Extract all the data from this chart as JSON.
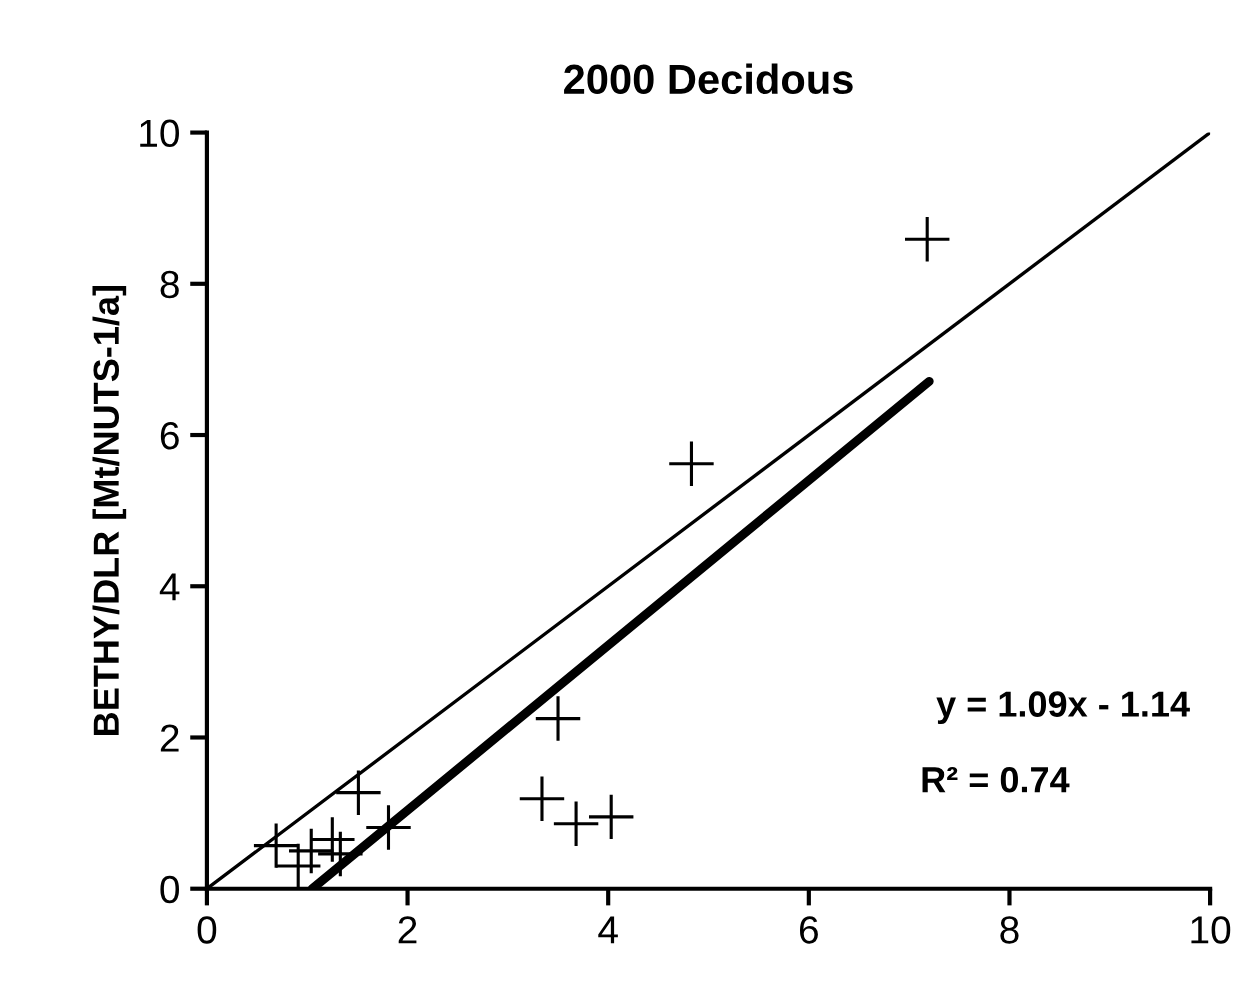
{
  "chart_data": {
    "type": "scatter",
    "title": "2000 Decidous",
    "ylabel": "BETHY/DLR [Mt/NUTS-1/a]",
    "series": [
      {
        "color": "#000000",
        "marker": "cross",
        "x": [
          0.69,
          0.91,
          1.04,
          1.25,
          1.33,
          1.51,
          1.81,
          3.34,
          3.5,
          3.68,
          4.03,
          4.83,
          7.18
        ],
        "values": [
          0.57,
          0.3,
          0.5,
          0.65,
          0.46,
          1.27,
          0.81,
          1.19,
          2.25,
          0.86,
          0.95,
          5.62,
          8.59
        ]
      },
      {
        "type": "line",
        "color": "#000000",
        "x": [
          0,
          10
        ],
        "values": [
          0,
          10
        ]
      },
      {
        "type": "line",
        "color": "#000000",
        "x": [
          1.05,
          7.2
        ],
        "values": [
          0,
          6.71
        ]
      }
    ],
    "annotations": [
      "y = 1.09x - 1.14",
      "R² = 0.74"
    ],
    "xlim": [
      0,
      10
    ],
    "ylim": [
      0,
      10
    ],
    "xticks": [
      0,
      2,
      4,
      6,
      8,
      10
    ],
    "yticks": [
      0,
      2,
      4,
      6,
      8,
      10
    ],
    "grid": false,
    "legend": false
  }
}
